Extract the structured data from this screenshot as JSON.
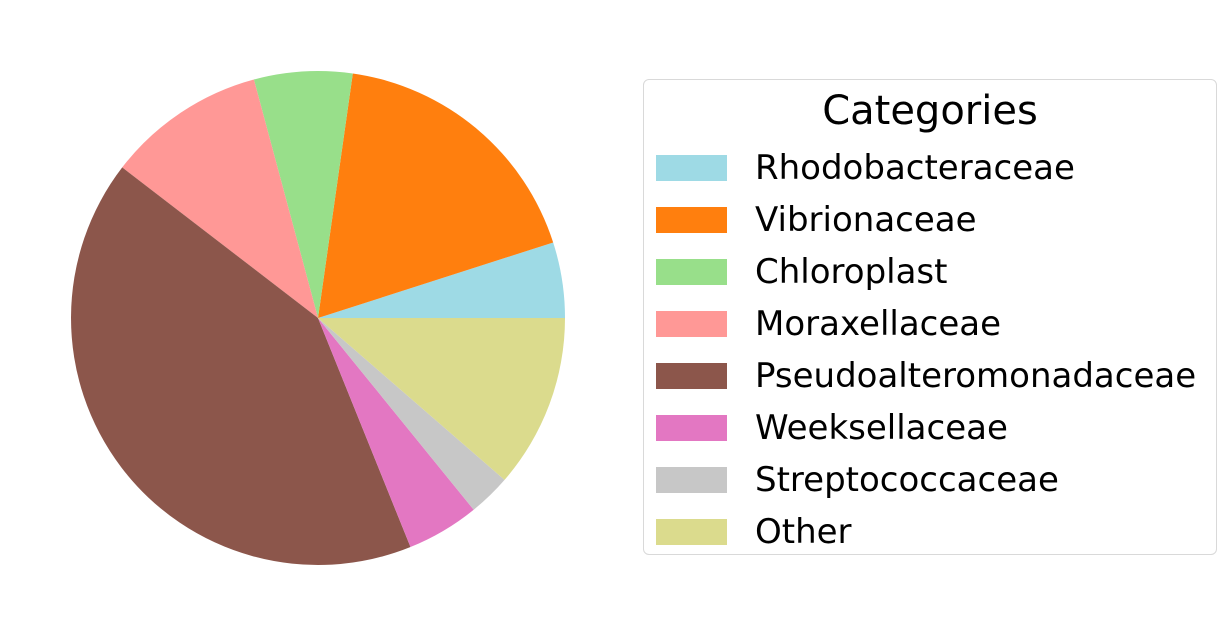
{
  "chart_data": {
    "type": "pie",
    "legend_title": "Categories",
    "legend_position": "right",
    "start_angle_deg": 0,
    "direction": "counterclockwise",
    "slices": [
      {
        "label": "Rhodobacteraceae",
        "value": 5.0,
        "color": "#9edae5"
      },
      {
        "label": "Vibrionaceae",
        "value": 18.0,
        "color": "#ff7f0e"
      },
      {
        "label": "Chloroplast",
        "value": 6.5,
        "color": "#98df8a"
      },
      {
        "label": "Moraxellaceae",
        "value": 10.5,
        "color": "#ff9896"
      },
      {
        "label": "Pseudoalteromonadaceae",
        "value": 42.0,
        "color": "#8c564b"
      },
      {
        "label": "Weeksellaceae",
        "value": 4.8,
        "color": "#e377c2"
      },
      {
        "label": "Streptococcaceae",
        "value": 2.8,
        "color": "#c7c7c7"
      },
      {
        "label": "Other",
        "value": 11.5,
        "color": "#dbdb8d"
      }
    ]
  }
}
